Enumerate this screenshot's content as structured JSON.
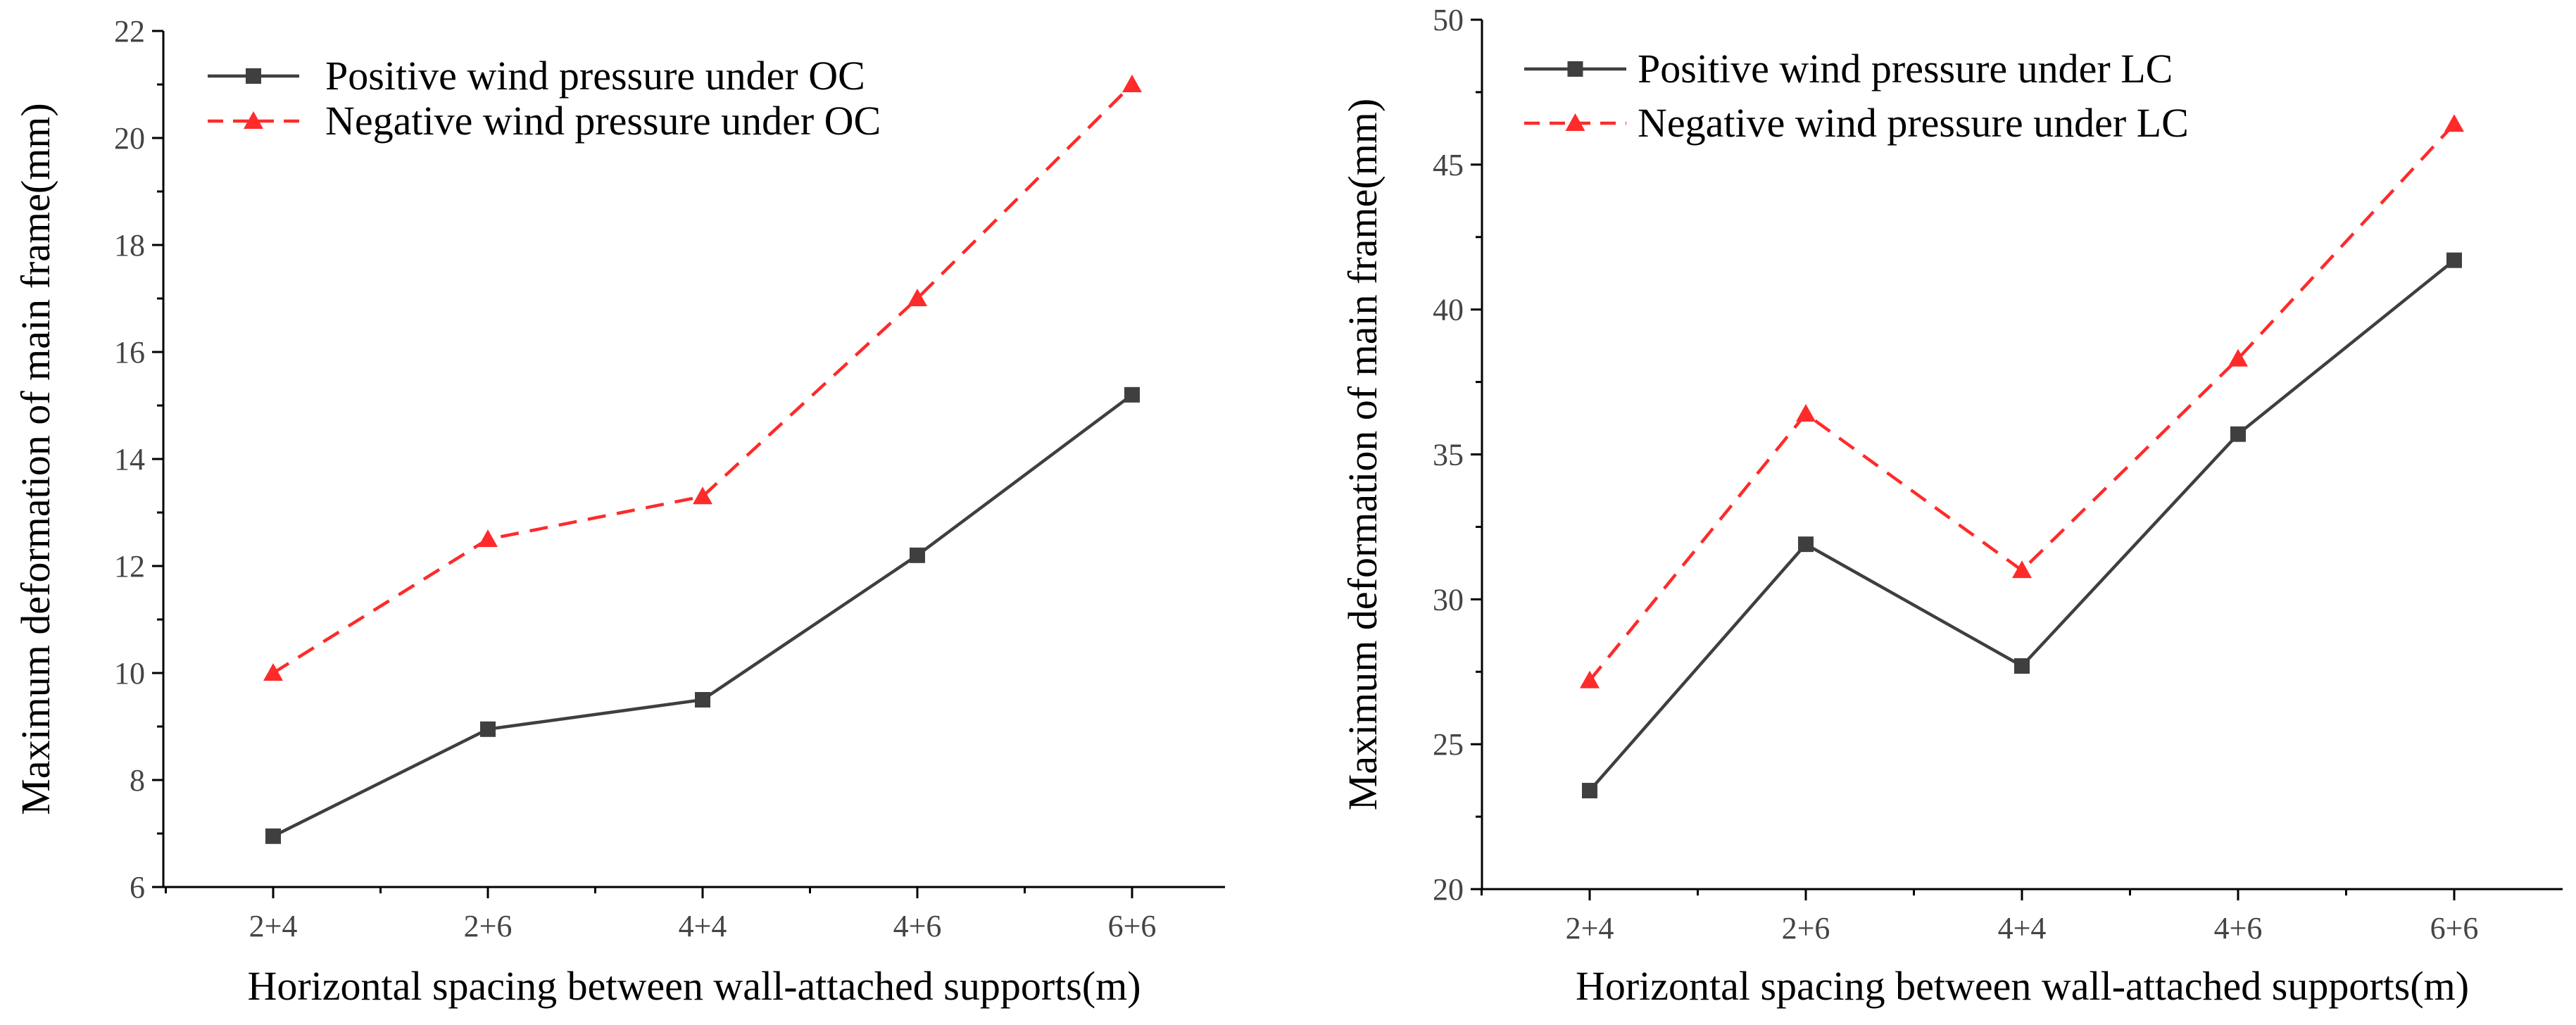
{
  "chart_data": [
    {
      "type": "line",
      "title": "",
      "xlabel": "Horizontal spacing between wall-attached supports(m)",
      "ylabel": "Maximum deformation of main frame(mm)",
      "categories": [
        "2+4",
        "2+6",
        "4+4",
        "4+6",
        "6+6"
      ],
      "ylim": [
        6,
        22
      ],
      "yticks": [
        "6",
        "8",
        "10",
        "12",
        "14",
        "16",
        "18",
        "20",
        "22"
      ],
      "legend_position": "top-left",
      "series": [
        {
          "name": "Positive wind pressure under OC",
          "values": [
            6.95,
            8.95,
            9.5,
            12.2,
            15.2
          ],
          "color": "#3f3f3f",
          "marker": "square",
          "dash": "solid"
        },
        {
          "name": "Negative wind pressure under OC",
          "values": [
            10.0,
            12.5,
            13.3,
            17.0,
            21.0
          ],
          "color": "#ff2a2a",
          "marker": "triangle",
          "dash": "dashed"
        }
      ]
    },
    {
      "type": "line",
      "title": "",
      "xlabel": "Horizontal spacing between wall-attached supports(m)",
      "ylabel": "Maximum deformation of main frame(mm)",
      "categories": [
        "2+4",
        "2+6",
        "4+4",
        "4+6",
        "6+6"
      ],
      "ylim": [
        20,
        50
      ],
      "yticks": [
        "20",
        "25",
        "30",
        "35",
        "40",
        "45",
        "50"
      ],
      "legend_position": "top-left",
      "series": [
        {
          "name": "Positive wind pressure under LC",
          "values": [
            23.4,
            31.9,
            27.7,
            35.7,
            41.7
          ],
          "color": "#3f3f3f",
          "marker": "square",
          "dash": "solid"
        },
        {
          "name": "Negative wind pressure under LC",
          "values": [
            27.2,
            36.4,
            31.0,
            38.3,
            46.4
          ],
          "color": "#ff2a2a",
          "marker": "triangle",
          "dash": "dashed"
        }
      ]
    }
  ]
}
